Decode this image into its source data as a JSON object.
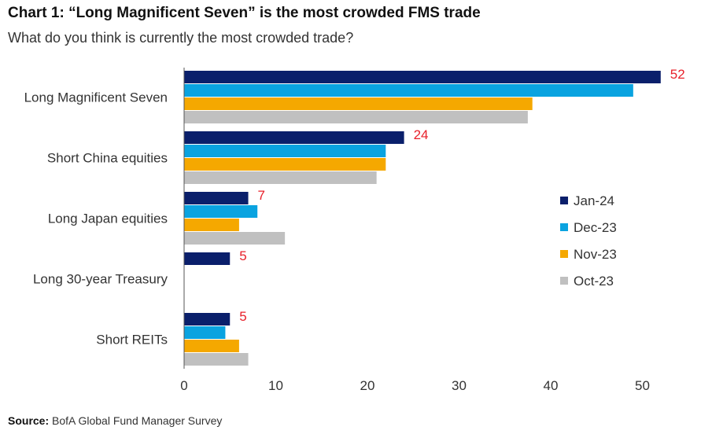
{
  "header": {
    "title": "Chart 1: “Long Magnificent Seven” is the most crowded FMS trade",
    "subtitle": "What do you think is currently the most crowded trade?"
  },
  "footer": {
    "source_label": "Source:",
    "source_text": "BofA Global Fund Manager Survey"
  },
  "chart_data": {
    "type": "bar",
    "orientation": "horizontal",
    "categories": [
      "Long Magnificent Seven",
      "Short China equities",
      "Long Japan equities",
      "Long 30-year Treasury",
      "Short REITs"
    ],
    "series": [
      {
        "name": "Jan-24",
        "color": "#0a1f6b",
        "values": [
          52,
          24,
          7,
          5,
          5
        ]
      },
      {
        "name": "Dec-23",
        "color": "#0aa3e0",
        "values": [
          49,
          22,
          8,
          0,
          4.5
        ]
      },
      {
        "name": "Nov-23",
        "color": "#f5a800",
        "values": [
          38,
          22,
          6,
          0,
          6
        ]
      },
      {
        "name": "Oct-23",
        "color": "#c0c0c0",
        "values": [
          37.5,
          21,
          11,
          0,
          7
        ]
      }
    ],
    "data_labels": [
      {
        "category": "Long Magnificent Seven",
        "series": "Jan-24",
        "value": 52,
        "text": "52"
      },
      {
        "category": "Short China equities",
        "series": "Jan-24",
        "value": 24,
        "text": "24"
      },
      {
        "category": "Long Japan equities",
        "series": "Jan-24",
        "value": 7,
        "text": "7"
      },
      {
        "category": "Long 30-year Treasury",
        "series": "Jan-24",
        "value": 5,
        "text": "5"
      },
      {
        "category": "Short REITs",
        "series": "Jan-24",
        "value": 5,
        "text": "5"
      }
    ],
    "xlim": [
      0,
      55
    ],
    "xticks": [
      0,
      10,
      20,
      30,
      40,
      50
    ],
    "label_color": "#e8202a",
    "grid": false,
    "legend_position": "right"
  }
}
